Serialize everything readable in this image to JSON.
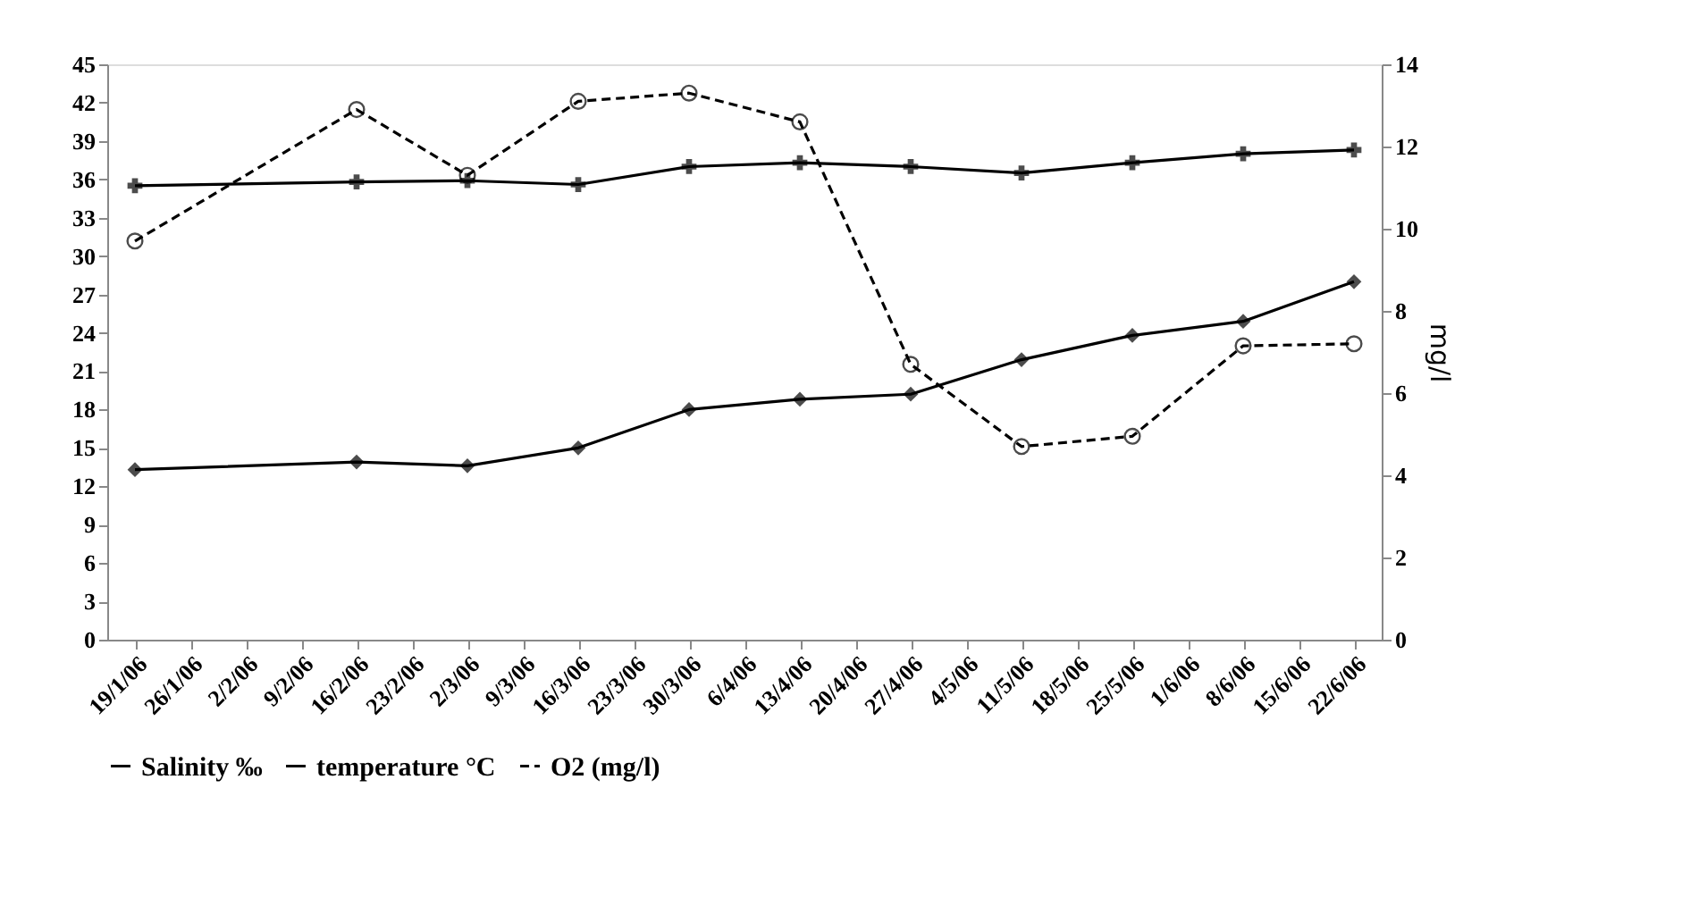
{
  "chart_data": {
    "type": "line",
    "categories": [
      "19/1/06",
      "26/1/06",
      "2/2/06",
      "9/2/06",
      "16/2/06",
      "23/2/06",
      "2/3/06",
      "9/3/06",
      "16/3/06",
      "23/3/06",
      "30/3/06",
      "6/4/06",
      "13/4/06",
      "20/4/06",
      "27/4/06",
      "4/5/06",
      "11/5/06",
      "18/5/06",
      "25/5/06",
      "1/6/06",
      "8/6/06",
      "15/6/06",
      "22/6/06"
    ],
    "series": [
      {
        "name": "Salinity ‰",
        "color": "#000000",
        "marker": "cross",
        "line_style": "solid",
        "values": [
          35.5,
          null,
          null,
          null,
          35.8,
          null,
          35.9,
          null,
          35.6,
          null,
          37.0,
          null,
          37.3,
          null,
          37.0,
          null,
          36.5,
          null,
          37.3,
          null,
          38.0,
          null,
          38.3
        ]
      },
      {
        "name": "temperature °C",
        "color": "#000000",
        "marker": "diamond",
        "line_style": "solid",
        "values": [
          13.3,
          null,
          null,
          null,
          13.9,
          null,
          13.6,
          null,
          15.0,
          null,
          18.0,
          null,
          18.8,
          null,
          19.2,
          null,
          21.9,
          null,
          23.8,
          null,
          24.9,
          null,
          28.0
        ]
      },
      {
        "name": "O2 (mg/l)",
        "color": "#000000",
        "marker": "circle",
        "line_style": "dashed",
        "axis": "y2",
        "values": [
          9.7,
          null,
          null,
          null,
          12.9,
          null,
          11.3,
          null,
          13.1,
          null,
          13.3,
          null,
          12.6,
          null,
          6.7,
          null,
          4.7,
          null,
          4.95,
          null,
          7.15,
          null,
          7.2
        ]
      }
    ],
    "ylim": [
      0,
      45
    ],
    "yticks": [
      0,
      3,
      6,
      9,
      12,
      15,
      18,
      21,
      24,
      27,
      30,
      33,
      36,
      39,
      42,
      45
    ],
    "y2lim": [
      0,
      14
    ],
    "y2ticks": [
      0,
      2,
      4,
      6,
      8,
      10,
      12,
      14
    ],
    "y2label": "mg/l",
    "grid": false,
    "legend": "bottom"
  }
}
